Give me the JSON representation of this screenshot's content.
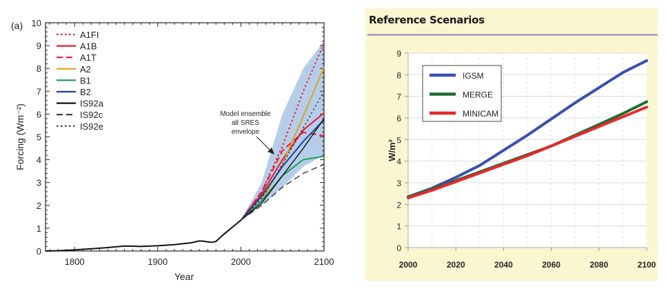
{
  "chart_data": [
    {
      "type": "line",
      "panel_label": "(a)",
      "xlabel": "Year",
      "ylabel": "Forcing (Wm⁻²)",
      "xlim": [
        1765,
        2100
      ],
      "ylim": [
        0,
        10
      ],
      "xticks": [
        1800,
        1900,
        2000,
        2100
      ],
      "yticks": [
        0,
        1,
        2,
        3,
        4,
        5,
        6,
        7,
        8,
        9,
        10
      ],
      "grid": false,
      "legend": "top-left",
      "historical": {
        "x": [
          1765,
          1780,
          1800,
          1820,
          1840,
          1860,
          1880,
          1900,
          1920,
          1940,
          1950,
          1955,
          1960,
          1965,
          1970,
          1980,
          1990,
          2000
        ],
        "y": [
          0,
          0.01,
          0.05,
          0.1,
          0.15,
          0.22,
          0.2,
          0.23,
          0.28,
          0.36,
          0.44,
          0.43,
          0.4,
          0.38,
          0.42,
          0.75,
          1.05,
          1.35
        ]
      },
      "envelope": {
        "label": [
          "Model ensemble",
          "all SRES",
          "envelope"
        ],
        "color": "#a9c4e6",
        "x": [
          2000,
          2025,
          2050,
          2075,
          2100
        ],
        "upper": [
          1.35,
          3.0,
          6.0,
          8.0,
          9.2
        ],
        "lower": [
          1.35,
          2.0,
          2.8,
          3.7,
          4.2
        ]
      },
      "x": [
        2000,
        2025,
        2050,
        2075,
        2100
      ],
      "series": [
        {
          "name": "A1FI",
          "color": "#e8192c",
          "dash": "dotted",
          "values": [
            1.35,
            2.6,
            4.6,
            7.0,
            9.1
          ]
        },
        {
          "name": "A1B",
          "color": "#e8192c",
          "dash": "solid",
          "values": [
            1.35,
            2.5,
            4.0,
            5.3,
            6.05
          ]
        },
        {
          "name": "A1T",
          "color": "#e8192c",
          "dash": "dashed",
          "values": [
            1.35,
            2.6,
            4.4,
            5.2,
            5.05
          ]
        },
        {
          "name": "A2",
          "color": "#e0a21a",
          "dash": "solid",
          "values": [
            1.35,
            2.2,
            3.8,
            5.9,
            8.05
          ]
        },
        {
          "name": "B1",
          "color": "#1f9e5a",
          "dash": "solid",
          "values": [
            1.35,
            2.2,
            3.3,
            4.0,
            4.15
          ]
        },
        {
          "name": "B2",
          "color": "#1f3fa8",
          "dash": "solid",
          "values": [
            1.35,
            2.4,
            3.7,
            4.8,
            5.75
          ]
        },
        {
          "name": "IS92a",
          "color": "#111111",
          "dash": "solid",
          "values": [
            1.35,
            2.1,
            3.3,
            4.5,
            5.8
          ]
        },
        {
          "name": "IS92c",
          "color": "#333333",
          "dash": "dashed",
          "values": [
            1.35,
            2.0,
            2.8,
            3.4,
            3.8
          ]
        },
        {
          "name": "IS92e",
          "color": "#333333",
          "dash": "dotted",
          "values": [
            1.35,
            2.3,
            3.8,
            5.4,
            7.0
          ]
        }
      ]
    },
    {
      "type": "line",
      "title": "Reference Scenarios",
      "xlabel": "",
      "ylabel": "W/m²",
      "xlim": [
        2000,
        2100
      ],
      "ylim": [
        0,
        9
      ],
      "xticks": [
        2000,
        2020,
        2040,
        2060,
        2080,
        2100
      ],
      "yticks": [
        0,
        1,
        2,
        3,
        4,
        5,
        6,
        7,
        8,
        9
      ],
      "grid": true,
      "legend": "top-left",
      "background": "#fbf6d2",
      "x": [
        2000,
        2010,
        2020,
        2030,
        2040,
        2050,
        2060,
        2070,
        2080,
        2090,
        2100
      ],
      "series": [
        {
          "name": "IGSM",
          "color": "#3a4fb0",
          "values": [
            2.35,
            2.75,
            3.25,
            3.8,
            4.5,
            5.2,
            5.95,
            6.7,
            7.4,
            8.1,
            8.65
          ]
        },
        {
          "name": "MERGE",
          "color": "#1e6b34",
          "values": [
            2.35,
            2.7,
            3.1,
            3.5,
            3.9,
            4.3,
            4.7,
            5.2,
            5.7,
            6.2,
            6.75
          ]
        },
        {
          "name": "MINICAM",
          "color": "#e8282a",
          "values": [
            2.3,
            2.65,
            3.05,
            3.45,
            3.85,
            4.25,
            4.7,
            5.15,
            5.6,
            6.05,
            6.5
          ]
        }
      ]
    }
  ]
}
